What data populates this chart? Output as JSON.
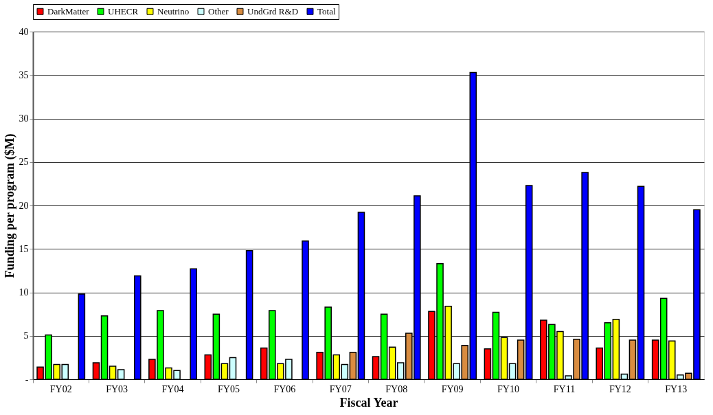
{
  "chart_data": {
    "type": "bar",
    "xlabel": "Fiscal Year",
    "ylabel": "Funding  per  program ($M)",
    "categories": [
      "FY02",
      "FY03",
      "FY04",
      "FY05",
      "FY06",
      "FY07",
      "FY08",
      "FY09",
      "FY10",
      "FY11",
      "FY12",
      "FY13"
    ],
    "series": [
      {
        "name": "DarkMatter",
        "color": "#ff0000",
        "values": [
          1.4,
          1.9,
          2.3,
          2.8,
          3.6,
          3.1,
          2.6,
          7.8,
          3.5,
          6.8,
          3.6,
          4.5
        ]
      },
      {
        "name": "UHECR",
        "color": "#00ff00",
        "values": [
          5.1,
          7.3,
          7.9,
          7.5,
          7.9,
          8.3,
          7.5,
          13.3,
          7.7,
          6.3,
          6.5,
          9.3
        ]
      },
      {
        "name": "Neutrino",
        "color": "#ffff00",
        "values": [
          1.7,
          1.5,
          1.3,
          1.8,
          1.8,
          2.8,
          3.7,
          8.4,
          4.8,
          5.5,
          6.9,
          4.4
        ]
      },
      {
        "name": "Other",
        "color": "#ccffff",
        "values": [
          1.7,
          1.1,
          1.0,
          2.5,
          2.3,
          1.7,
          1.9,
          1.8,
          1.8,
          0.4,
          0.6,
          0.5
        ]
      },
      {
        "name": "UndGrd R&D",
        "color": "#d98c40",
        "values": [
          null,
          null,
          null,
          null,
          null,
          3.1,
          5.3,
          3.9,
          4.5,
          4.6,
          4.5,
          0.7
        ]
      },
      {
        "name": "Total",
        "color": "#0000ff",
        "values": [
          9.8,
          11.9,
          12.7,
          14.8,
          15.9,
          19.2,
          21.1,
          35.3,
          22.3,
          23.8,
          22.2,
          19.5
        ]
      }
    ],
    "ylim": [
      0,
      40
    ],
    "yticks": [
      {
        "value": 0,
        "label": "-"
      },
      5,
      10,
      15,
      20,
      25,
      30,
      35,
      40
    ],
    "grid": "y",
    "legend": "top"
  }
}
